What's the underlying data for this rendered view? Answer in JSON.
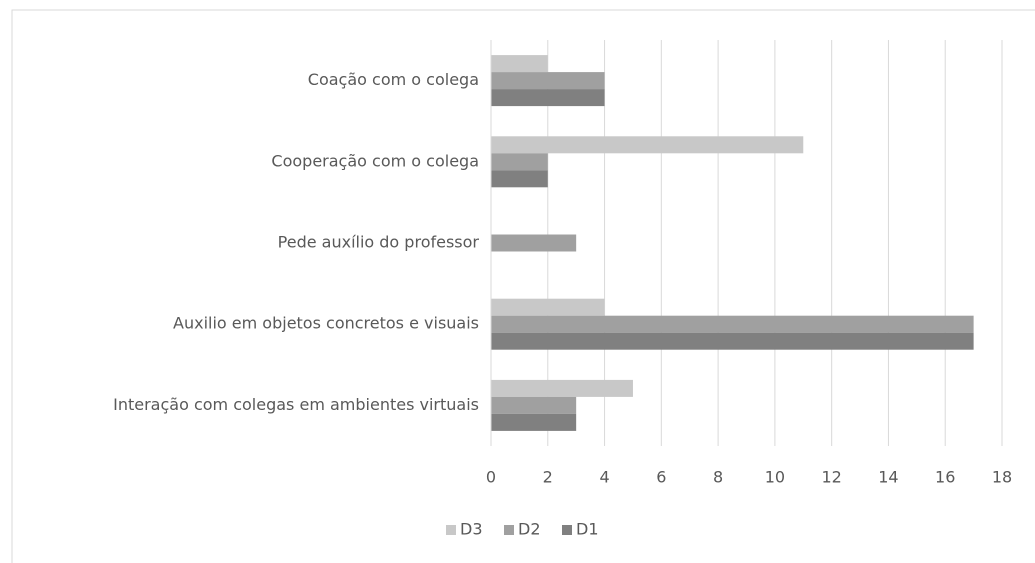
{
  "chart_data": {
    "type": "bar",
    "orientation": "horizontal",
    "categories": [
      "Coação com o colega",
      "Cooperação com o colega",
      "Pede auxílio do professor",
      "Auxilio em objetos concretos e visuais",
      "Interação com colegas em ambientes virtuais"
    ],
    "series": [
      {
        "name": "D3",
        "color": "#c8c8c8",
        "values": [
          2,
          11,
          0,
          4,
          5
        ]
      },
      {
        "name": "D2",
        "color": "#a0a0a0",
        "values": [
          4,
          2,
          3,
          17,
          3
        ]
      },
      {
        "name": "D1",
        "color": "#808080",
        "values": [
          4,
          2,
          0,
          17,
          3
        ]
      }
    ],
    "xlim": [
      0,
      18
    ],
    "xticks": [
      0,
      2,
      4,
      6,
      8,
      10,
      12,
      14,
      16,
      18
    ],
    "grid": true,
    "legend": "bottom"
  }
}
